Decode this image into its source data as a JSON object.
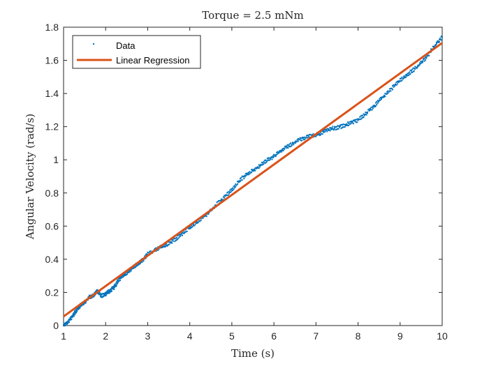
{
  "chart_data": {
    "type": "scatter",
    "title": "Torque = 2.5 mNm",
    "xlabel": "Time (s)",
    "ylabel": "Angular Velocity (rad/s)",
    "xlim": [
      1,
      10
    ],
    "ylim": [
      0,
      1.8
    ],
    "xticks": [
      1,
      2,
      3,
      4,
      5,
      6,
      7,
      8,
      9,
      10
    ],
    "yticks": [
      0,
      0.2,
      0.4,
      0.6,
      0.8,
      1,
      1.2,
      1.4,
      1.6,
      1.8
    ],
    "xtick_labels": [
      "1",
      "2",
      "3",
      "4",
      "5",
      "6",
      "7",
      "8",
      "9",
      "10"
    ],
    "ytick_labels": [
      "0",
      "0.2",
      "0.4",
      "0.6",
      "0.8",
      "1",
      "1.2",
      "1.4",
      "1.6",
      "1.8"
    ],
    "grid": false,
    "legend_position": "top-left",
    "series": [
      {
        "name": "Data",
        "kind": "points",
        "color": "#0072BD",
        "x": [
          1.0,
          1.1,
          1.2,
          1.3,
          1.4,
          1.5,
          1.6,
          1.7,
          1.8,
          1.9,
          2.0,
          2.1,
          2.2,
          2.3,
          2.4,
          2.5,
          2.6,
          2.7,
          2.8,
          2.9,
          3.0,
          3.2,
          3.4,
          3.6,
          3.8,
          4.0,
          4.2,
          4.4,
          4.6,
          4.8,
          5.0,
          5.2,
          5.4,
          5.6,
          5.8,
          6.0,
          6.2,
          6.4,
          6.6,
          6.8,
          7.0,
          7.2,
          7.4,
          7.6,
          7.8,
          8.0,
          8.2,
          8.4,
          8.6,
          8.8,
          9.0,
          9.2,
          9.4,
          9.6,
          9.8,
          10.0
        ],
        "y": [
          0.0,
          0.02,
          0.05,
          0.09,
          0.12,
          0.14,
          0.17,
          0.18,
          0.21,
          0.18,
          0.19,
          0.21,
          0.23,
          0.27,
          0.3,
          0.32,
          0.34,
          0.36,
          0.38,
          0.4,
          0.43,
          0.46,
          0.48,
          0.51,
          0.55,
          0.59,
          0.63,
          0.67,
          0.72,
          0.77,
          0.82,
          0.88,
          0.92,
          0.95,
          0.99,
          1.02,
          1.06,
          1.09,
          1.12,
          1.14,
          1.15,
          1.17,
          1.19,
          1.2,
          1.22,
          1.24,
          1.28,
          1.33,
          1.38,
          1.43,
          1.48,
          1.52,
          1.56,
          1.61,
          1.68,
          1.74
        ]
      },
      {
        "name": "Linear Regression",
        "kind": "line",
        "color": "#D95319",
        "x": [
          1,
          10
        ],
        "y": [
          0.055,
          1.705
        ]
      }
    ]
  }
}
